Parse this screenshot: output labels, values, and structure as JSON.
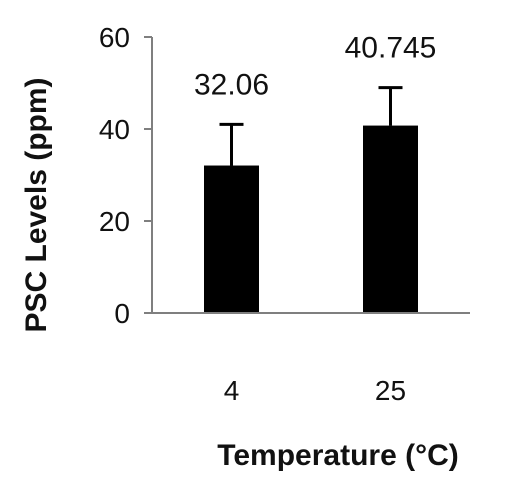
{
  "chart_data": {
    "type": "bar",
    "categories": [
      "4",
      "25"
    ],
    "values": [
      32.06,
      40.745
    ],
    "error_upper": [
      41,
      49
    ],
    "data_labels": [
      "32.06",
      "40.745"
    ],
    "xlabel": "Temperature (°C)",
    "ylabel": "PSC Levels (ppm)",
    "ylim": [
      0,
      60
    ],
    "yticks": [
      "0",
      "20",
      "40",
      "60"
    ],
    "grid": false,
    "bar_color": "#000000",
    "axis_color": "#7f7f7f"
  }
}
